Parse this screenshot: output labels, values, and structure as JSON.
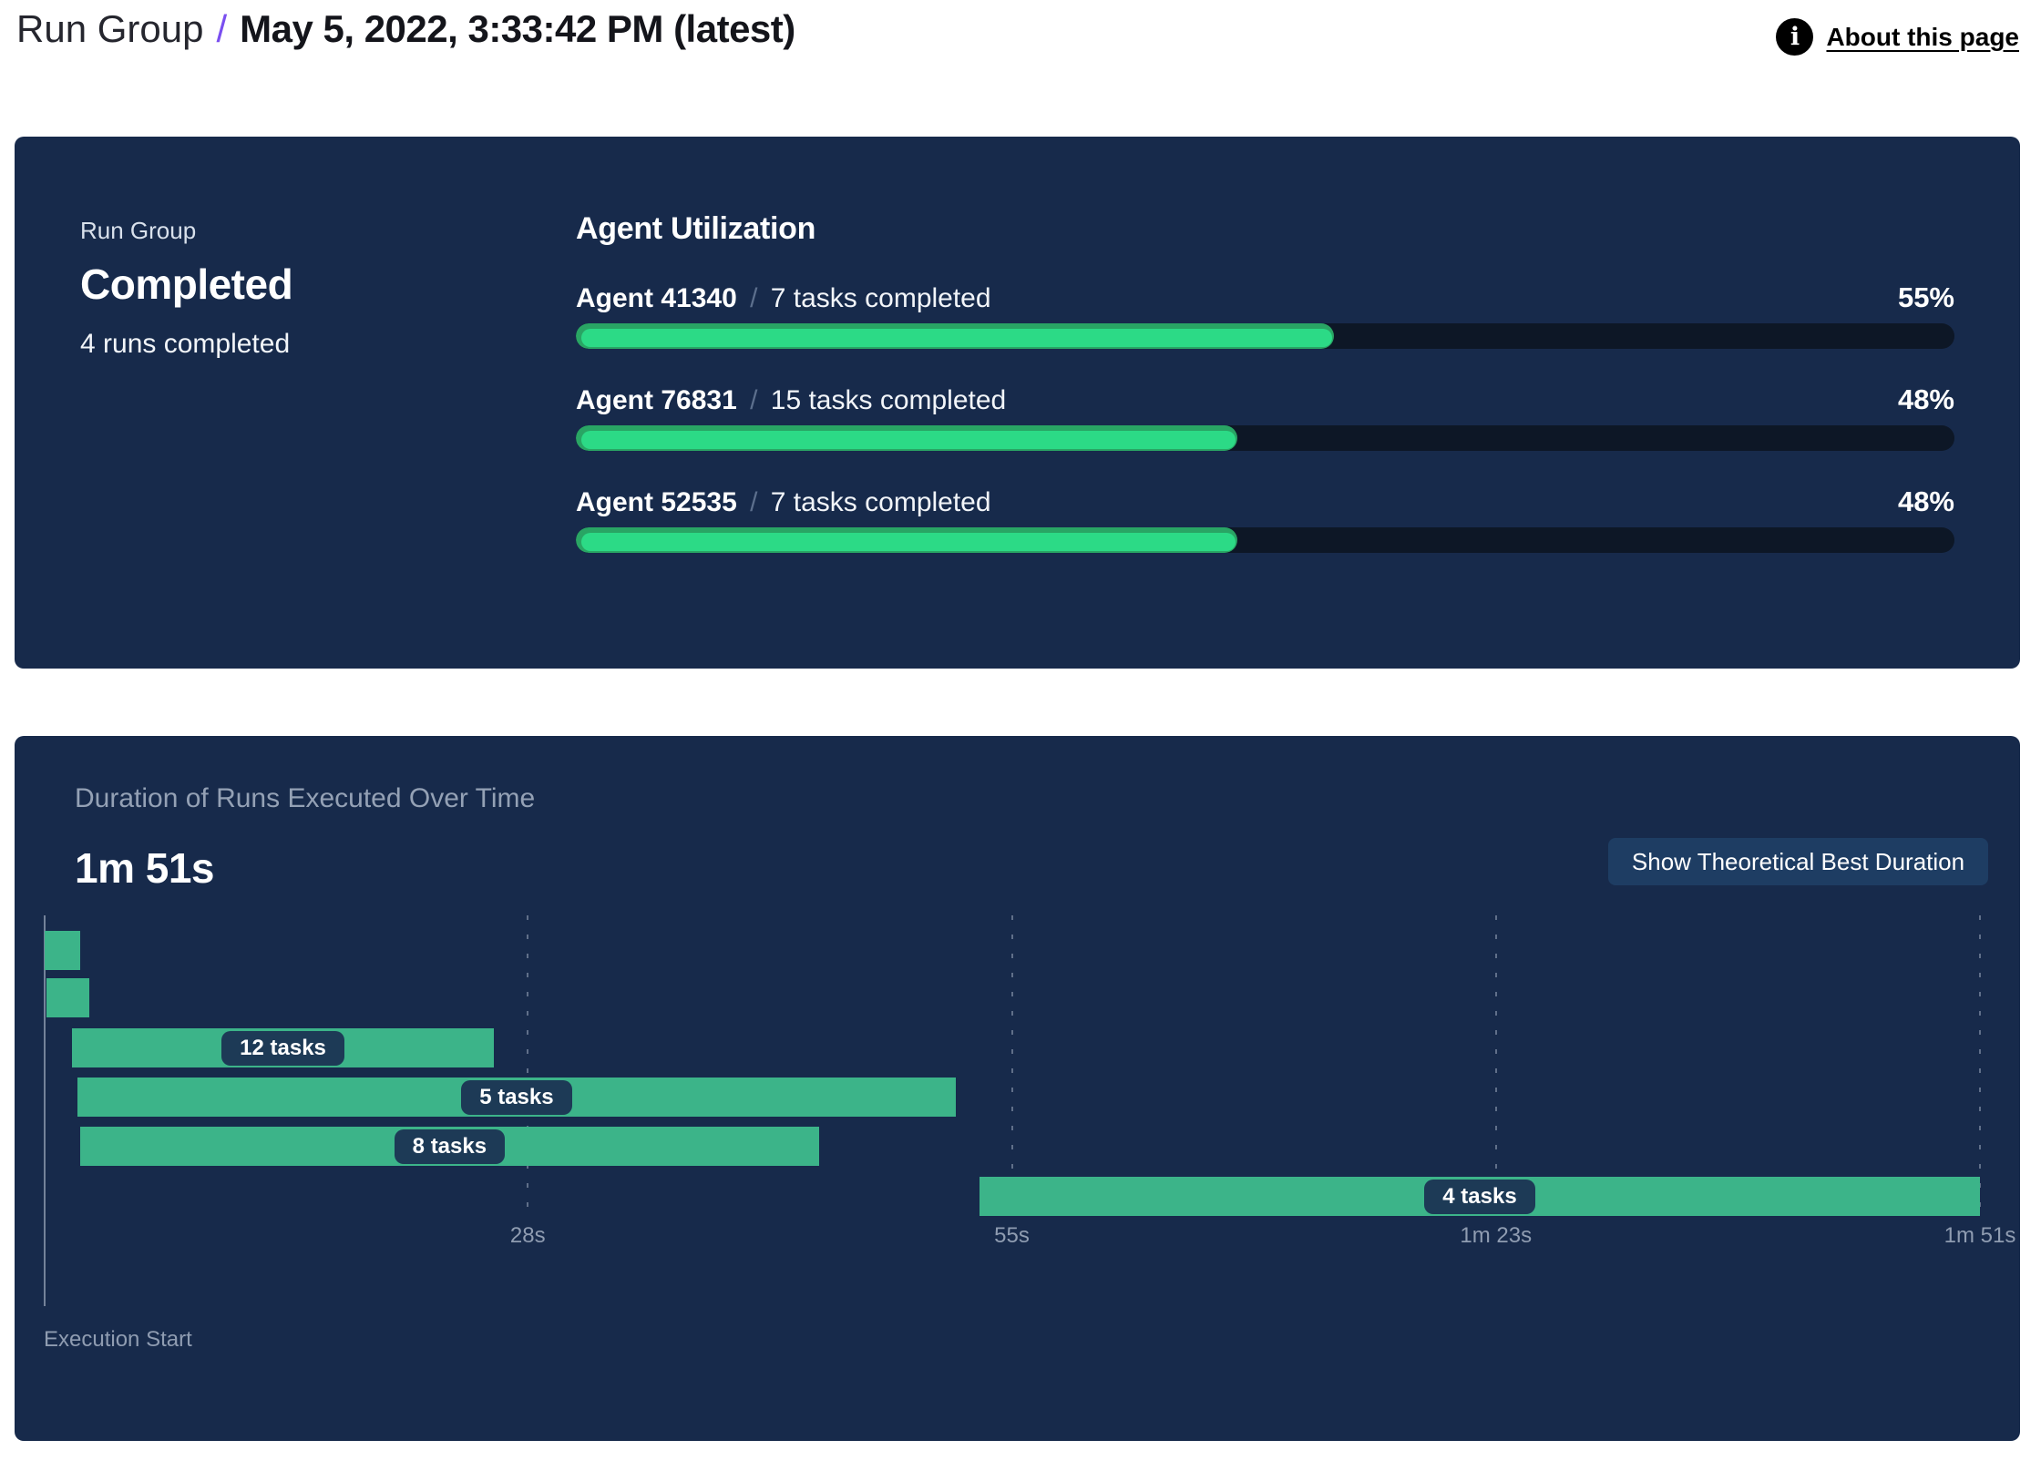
{
  "header": {
    "breadcrumb_parent": "Run Group",
    "separator": "/",
    "title": "May 5, 2022, 3:33:42 PM (latest)",
    "about": {
      "label": "About this page",
      "icon": "info-icon",
      "icon_glyph": "i"
    }
  },
  "summary_card": {
    "group_label": "Run Group",
    "status": "Completed",
    "runs_completed": "4 runs completed",
    "agent_utilization": {
      "heading": "Agent Utilization",
      "separator": "/",
      "agents": [
        {
          "name": "Agent 41340",
          "tasks": "7 tasks completed",
          "percent": "55%",
          "value": 55
        },
        {
          "name": "Agent 76831",
          "tasks": "15 tasks completed",
          "percent": "48%",
          "value": 48
        },
        {
          "name": "Agent 52535",
          "tasks": "7 tasks completed",
          "percent": "48%",
          "value": 48
        }
      ]
    }
  },
  "duration_card": {
    "title": "Duration of Runs Executed Over Time",
    "total_duration": "1m 51s",
    "button_label": "Show Theoretical Best Duration",
    "execution_start_label": "Execution Start"
  },
  "chart_data": [
    {
      "type": "bar",
      "title": "Agent Utilization",
      "categories": [
        "Agent 41340",
        "Agent 76831",
        "Agent 52535"
      ],
      "values": [
        55,
        48,
        48
      ],
      "unit": "%",
      "annotations": [
        "7 tasks completed",
        "15 tasks completed",
        "7 tasks completed"
      ],
      "xlim": [
        0,
        100
      ]
    },
    {
      "type": "gantt",
      "title": "Duration of Runs Executed Over Time",
      "total_duration": "1m 51s",
      "x_axis": {
        "start_label": "Execution Start",
        "ticks": [
          "28s",
          "55s",
          "1m 23s",
          "1m 51s"
        ],
        "tick_positions_pct": [
          25,
          50,
          75,
          100
        ],
        "max_seconds": 111,
        "grid": "dashed-vertical"
      },
      "runs": [
        {
          "label": null,
          "start_s": 0,
          "end_s": 2,
          "start_pct": 0.05,
          "width_pct": 1.84
        },
        {
          "label": null,
          "start_s": 0.2,
          "end_s": 2.6,
          "start_pct": 0.14,
          "width_pct": 2.21
        },
        {
          "label": "12 tasks",
          "start_s": 1.6,
          "end_s": 25.8,
          "start_pct": 1.46,
          "width_pct": 21.79
        },
        {
          "label": "5 tasks",
          "start_s": 1.9,
          "end_s": 52.3,
          "start_pct": 1.74,
          "width_pct": 45.36
        },
        {
          "label": "8 tasks",
          "start_s": 2.1,
          "end_s": 44.5,
          "start_pct": 1.88,
          "width_pct": 38.16
        },
        {
          "label": "4 tasks",
          "start_s": 53.7,
          "end_s": 111,
          "start_pct": 48.33,
          "width_pct": 51.67
        }
      ]
    }
  ],
  "colors": {
    "card_background": "#172A4B",
    "progress_track": "#0D1726",
    "progress_fill": "#2CDA86",
    "progress_fill_edge": "#29A564",
    "gantt_bar": "#3CB489",
    "label_pill": "#1D3A56",
    "button_background": "#1E3D63",
    "accent_purple": "#7A4FF0",
    "muted_text": "#94A1B5",
    "white_text": "#FFFFFF"
  }
}
